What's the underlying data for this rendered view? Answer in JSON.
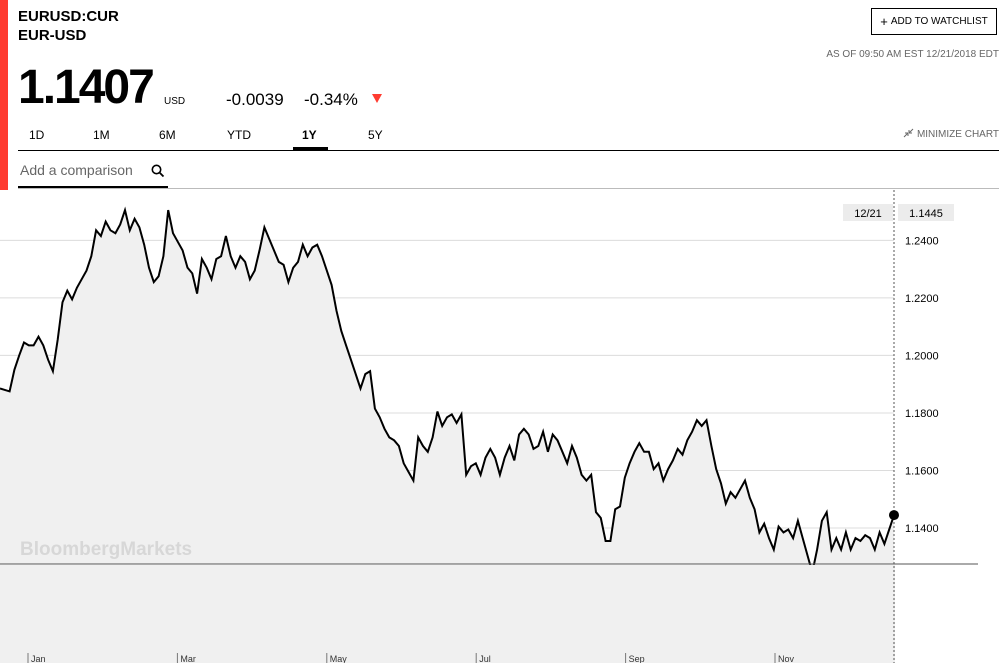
{
  "header": {
    "ticker": "EURUSD:CUR",
    "pair": "EUR-USD",
    "price": "1.1407",
    "currency": "USD",
    "change": "-0.0039",
    "change_pct": "-0.34%",
    "change_direction": "down",
    "watchlist_label": "ADD TO WATCHLIST",
    "as_of": "AS OF 09:50 AM EST 12/21/2018 EDT"
  },
  "tabs": [
    {
      "label": "1D",
      "active": false
    },
    {
      "label": "1M",
      "active": false
    },
    {
      "label": "6M",
      "active": false
    },
    {
      "label": "YTD",
      "active": false
    },
    {
      "label": "1Y",
      "active": true
    },
    {
      "label": "5Y",
      "active": false
    }
  ],
  "minimize_label": "MINIMIZE CHART",
  "search": {
    "placeholder": "Add a comparison",
    "icon": "search-icon"
  },
  "colors": {
    "accent_red": "#ff3b30",
    "line": "#000000",
    "area_fill": "#f0f0f0"
  },
  "chart_data": {
    "type": "area",
    "watermark": "BloombergMarkets",
    "crosshair": {
      "date": "12/21",
      "value": "1.1445"
    },
    "ylim": [
      1.1275,
      1.2575
    ],
    "yticks": [
      "1.1400",
      "1.1600",
      "1.1800",
      "1.2000",
      "1.2200",
      "1.2400"
    ],
    "xlabels": [
      "Jan",
      "Mar",
      "May",
      "Jul",
      "Sep",
      "Nov"
    ],
    "series": [
      {
        "values": [
          1.1885,
          1.188,
          1.1875,
          1.195,
          1.2,
          1.2045,
          1.2035,
          1.2035,
          1.2065,
          1.2035,
          1.1985,
          1.1945,
          1.2055,
          1.2185,
          1.2225,
          1.2195,
          1.2235,
          1.2265,
          1.2295,
          1.2345,
          1.2435,
          1.2415,
          1.2465,
          1.2435,
          1.2425,
          1.2455,
          1.2505,
          1.2435,
          1.2475,
          1.2445,
          1.2385,
          1.2305,
          1.2255,
          1.2275,
          1.2345,
          1.2505,
          1.2425,
          1.2395,
          1.2365,
          1.2305,
          1.2285,
          1.2215,
          1.2335,
          1.2305,
          1.2265,
          1.2335,
          1.2345,
          1.2415,
          1.2345,
          1.2305,
          1.2345,
          1.2325,
          1.2265,
          1.2295,
          1.2365,
          1.2445,
          1.2405,
          1.2365,
          1.2325,
          1.2315,
          1.2255,
          1.2305,
          1.2325,
          1.2385,
          1.2345,
          1.2375,
          1.2385,
          1.2345,
          1.2295,
          1.2245,
          1.2155,
          1.2085,
          1.2035,
          1.1985,
          1.1935,
          1.1885,
          1.1935,
          1.1945,
          1.1815,
          1.1785,
          1.1745,
          1.1715,
          1.1705,
          1.1685,
          1.1625,
          1.1595,
          1.1565,
          1.1715,
          1.1685,
          1.1665,
          1.1715,
          1.1805,
          1.1755,
          1.1785,
          1.1795,
          1.1765,
          1.1795,
          1.1585,
          1.1615,
          1.1625,
          1.1585,
          1.1645,
          1.1675,
          1.1645,
          1.1585,
          1.1645,
          1.1685,
          1.1635,
          1.1725,
          1.1745,
          1.1725,
          1.1675,
          1.1685,
          1.1735,
          1.1665,
          1.1725,
          1.1705,
          1.1665,
          1.1625,
          1.1685,
          1.1645,
          1.1585,
          1.1565,
          1.1585,
          1.1455,
          1.1435,
          1.1355,
          1.1355,
          1.1465,
          1.1475,
          1.1575,
          1.1625,
          1.1665,
          1.1695,
          1.1665,
          1.1665,
          1.1605,
          1.1625,
          1.1565,
          1.1605,
          1.1635,
          1.1675,
          1.1655,
          1.1705,
          1.1735,
          1.1775,
          1.1755,
          1.1775,
          1.1685,
          1.1605,
          1.1555,
          1.1485,
          1.1525,
          1.1505,
          1.1535,
          1.1565,
          1.1505,
          1.1465,
          1.1385,
          1.1415,
          1.1365,
          1.1325,
          1.1405,
          1.1385,
          1.1395,
          1.1365,
          1.1425,
          1.1365,
          1.1305,
          1.1245,
          1.1325,
          1.1425,
          1.1455,
          1.1325,
          1.1365,
          1.1325,
          1.1385,
          1.1325,
          1.1365,
          1.1355,
          1.1375,
          1.1365,
          1.1325,
          1.1385,
          1.1345,
          1.1395,
          1.1445
        ]
      }
    ]
  }
}
